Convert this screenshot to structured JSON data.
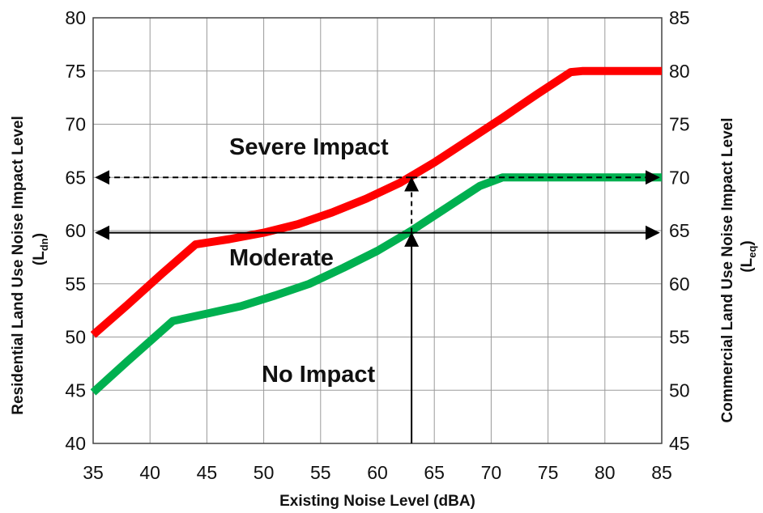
{
  "chart_data": {
    "type": "line",
    "xlabel": "Existing Noise Level (dBA)",
    "ylabel": "Residential Land Use Noise Impact Level",
    "ylabel_sub": "(L",
    "ylabel_subscript": "dn",
    "ylabel_close": ")",
    "y2label": "Commercial Land Use Noise Impact Level",
    "y2label_sub": "(L",
    "y2label_subscript": "eq",
    "y2label_close": ")",
    "xlim": [
      35,
      85
    ],
    "ylim": [
      40,
      80
    ],
    "y2lim": [
      45,
      85
    ],
    "x_ticks": [
      "35",
      "40",
      "45",
      "50",
      "55",
      "60",
      "65",
      "70",
      "75",
      "80",
      "85"
    ],
    "y_ticks": [
      "40",
      "45",
      "50",
      "55",
      "60",
      "65",
      "70",
      "75",
      "80"
    ],
    "y2_ticks": [
      "45",
      "50",
      "55",
      "60",
      "65",
      "70",
      "75",
      "80",
      "85"
    ],
    "grid": true,
    "series": [
      {
        "color": "#ff0000",
        "x": [
          35,
          38,
          41,
          44,
          47,
          50,
          53,
          56,
          59,
          62,
          65,
          68,
          71,
          74,
          77,
          78,
          85
        ],
        "y": [
          50.2,
          53,
          55.9,
          58.7,
          59.2,
          59.8,
          60.6,
          61.7,
          63.0,
          64.5,
          66.4,
          68.5,
          70.6,
          72.8,
          74.9,
          75,
          75
        ]
      },
      {
        "color": "#00b050",
        "x": [
          35,
          38,
          42,
          45,
          48,
          51,
          54,
          57,
          60,
          63,
          66,
          69,
          71,
          85
        ],
        "y": [
          44.8,
          47.7,
          51.5,
          52.2,
          52.9,
          53.9,
          55.0,
          56.5,
          58.1,
          60.0,
          62.1,
          64.2,
          65,
          65
        ]
      }
    ],
    "annotations": {
      "regions": [
        "Severe Impact",
        "Moderate",
        "No Impact"
      ],
      "example_x": 63,
      "severe_threshold_y": 65,
      "moderate_threshold_y": 59.8
    }
  }
}
